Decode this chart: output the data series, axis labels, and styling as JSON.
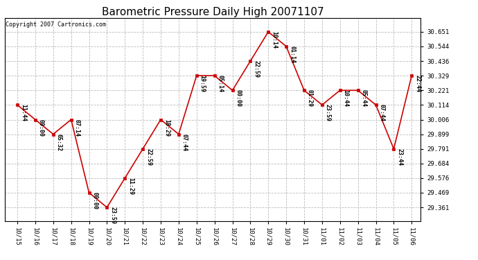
{
  "title": "Barometric Pressure Daily High 20071107",
  "copyright": "Copyright 2007 Cartronics.com",
  "x_labels": [
    "10/15",
    "10/16",
    "10/17",
    "10/18",
    "10/19",
    "10/20",
    "10/21",
    "10/22",
    "10/23",
    "10/24",
    "10/25",
    "10/26",
    "10/27",
    "10/28",
    "10/29",
    "10/30",
    "10/31",
    "11/01",
    "11/02",
    "11/03",
    "11/04",
    "11/05",
    "11/06"
  ],
  "y_values": [
    30.114,
    30.006,
    29.899,
    30.006,
    29.469,
    29.361,
    29.576,
    29.791,
    30.006,
    29.899,
    30.329,
    30.329,
    30.221,
    30.436,
    30.651,
    30.544,
    30.221,
    30.114,
    30.221,
    30.221,
    30.114,
    29.791,
    30.329
  ],
  "annotations": [
    "11:44",
    "00:00",
    "65:32",
    "07:14",
    "00:00",
    "23:59",
    "11:29",
    "22:59",
    "18:29",
    "07:44",
    "19:59",
    "05:14",
    "00:00",
    "22:59",
    "10:14",
    "01:14",
    "01:29",
    "23:59",
    "10:44",
    "05:44",
    "07:44",
    "23:44",
    "22:44"
  ],
  "y_ticks": [
    29.361,
    29.469,
    29.576,
    29.684,
    29.791,
    29.899,
    30.006,
    30.114,
    30.221,
    30.329,
    30.436,
    30.544,
    30.651
  ],
  "ylim": [
    29.261,
    30.751
  ],
  "xlim": [
    -0.7,
    22.5
  ],
  "line_color": "#cc0000",
  "marker_color": "#cc0000",
  "bg_color": "#ffffff",
  "grid_color": "#bbbbbb",
  "title_fontsize": 11,
  "copyright_fontsize": 6,
  "annotation_fontsize": 6,
  "tick_fontsize": 6.5
}
